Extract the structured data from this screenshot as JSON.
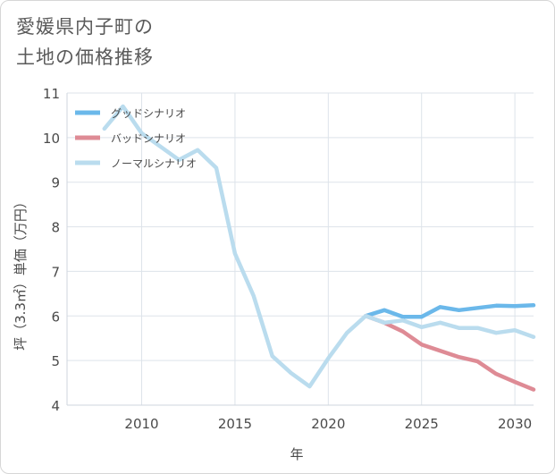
{
  "title_lines": [
    "愛媛県内子町の",
    "土地の価格推移"
  ],
  "chart_data": {
    "type": "line",
    "title": "愛媛県内子町の土地の価格推移",
    "xlabel": "年",
    "ylabel": "坪（3.3㎡）単価（万円）",
    "xlim": [
      2006,
      2031
    ],
    "ylim": [
      4,
      11
    ],
    "xticks": [
      2010,
      2015,
      2020,
      2025,
      2030
    ],
    "yticks": [
      4,
      5,
      6,
      7,
      8,
      9,
      10,
      11
    ],
    "grid": true,
    "legend_position": "top-left",
    "series": [
      {
        "name": "グッドシナリオ",
        "color": "#6bb8ea",
        "x": [
          2022,
          2023,
          2024,
          2025,
          2026,
          2027,
          2028,
          2029,
          2030,
          2031
        ],
        "y": [
          6.0,
          6.13,
          5.98,
          5.98,
          6.2,
          6.13,
          6.18,
          6.23,
          6.22,
          6.24
        ]
      },
      {
        "name": "バッドシナリオ",
        "color": "#de8b95",
        "x": [
          2022,
          2023,
          2024,
          2025,
          2026,
          2027,
          2028,
          2029,
          2030,
          2031
        ],
        "y": [
          6.0,
          5.85,
          5.65,
          5.36,
          5.22,
          5.08,
          4.98,
          4.7,
          4.52,
          4.35
        ]
      },
      {
        "name": "ノーマルシナリオ",
        "color": "#badcee",
        "x": [
          2008,
          2009,
          2010,
          2011,
          2012,
          2013,
          2014,
          2015,
          2016,
          2017,
          2018,
          2019,
          2020,
          2021,
          2022,
          2023,
          2024,
          2025,
          2026,
          2027,
          2028,
          2029,
          2030,
          2031
        ],
        "y": [
          10.2,
          10.7,
          10.1,
          9.8,
          9.5,
          9.72,
          9.32,
          7.4,
          6.45,
          5.1,
          4.72,
          4.42,
          5.05,
          5.62,
          6.0,
          5.85,
          5.9,
          5.75,
          5.85,
          5.73,
          5.73,
          5.62,
          5.68,
          5.53
        ]
      }
    ]
  }
}
